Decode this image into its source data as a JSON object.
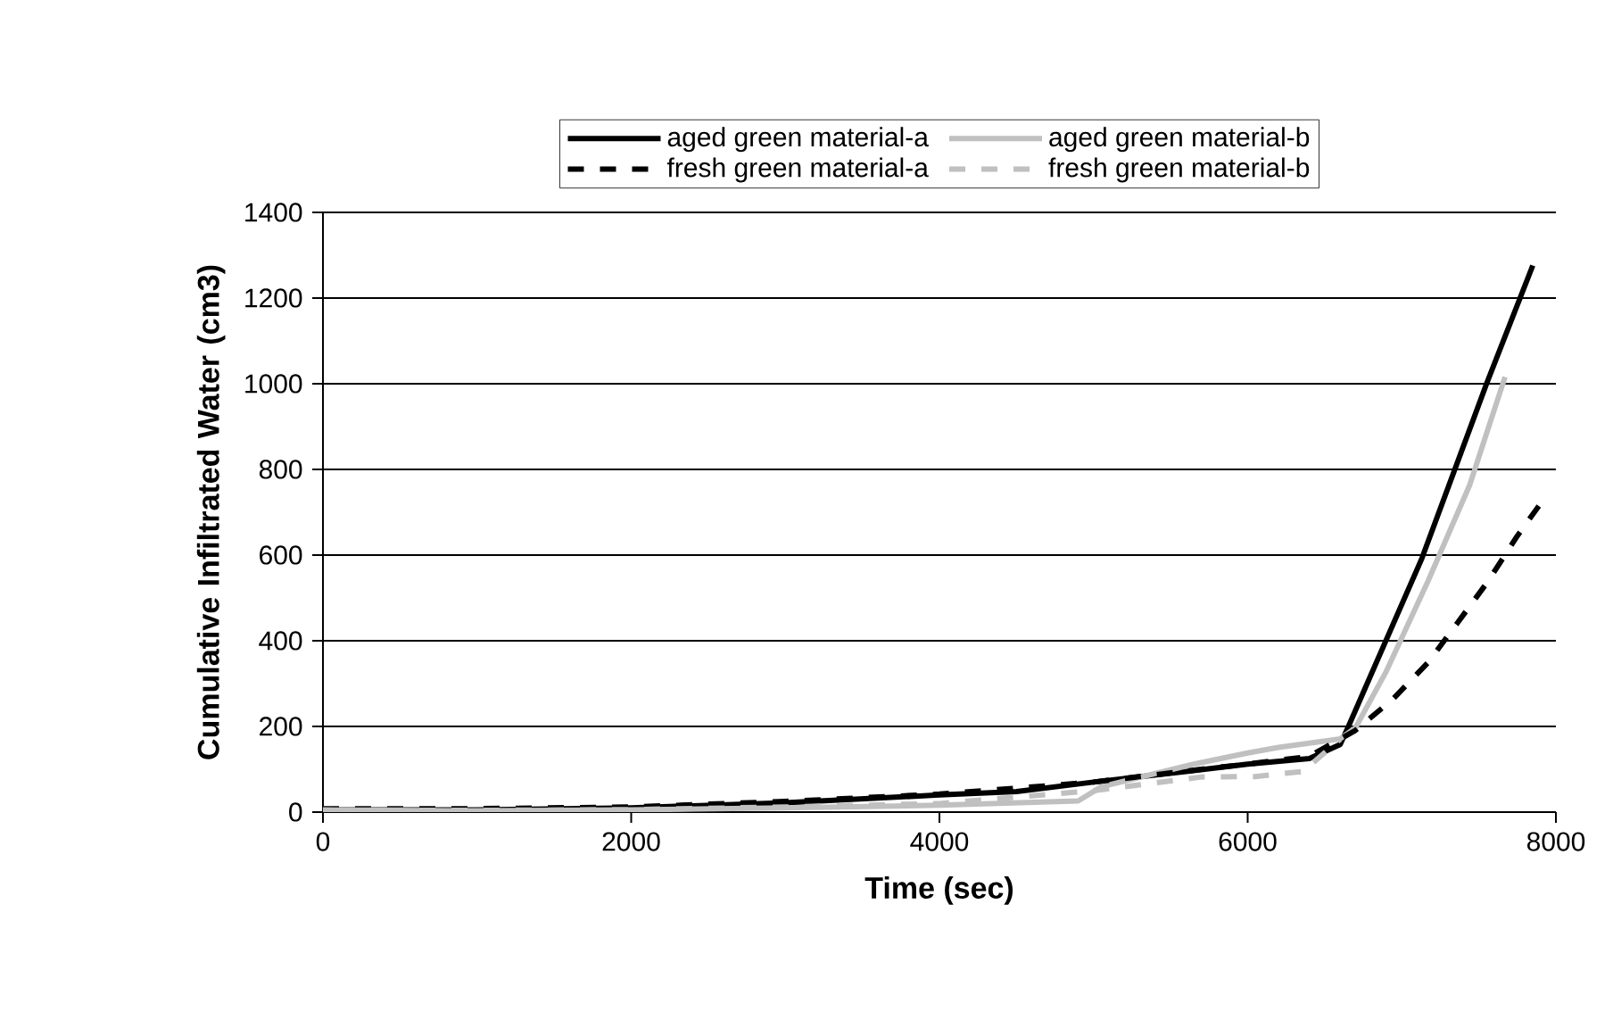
{
  "chart_data": {
    "type": "line",
    "xlabel": "Time (sec)",
    "ylabel": "Cumulative Infiltrated Water (cm3)",
    "xlim": [
      0,
      8000
    ],
    "xticks": [
      0,
      2000,
      4000,
      6000,
      8000
    ],
    "ylim": [
      0,
      1400
    ],
    "yticks": [
      0,
      200,
      400,
      600,
      800,
      1000,
      1200,
      1400
    ],
    "grid": "y",
    "legend": "top",
    "marker": "none",
    "series": [
      {
        "name": "aged green material-a",
        "color": "#000000",
        "line_style": "solid",
        "x": [
          0,
          1000,
          2000,
          3000,
          4000,
          4500,
          5000,
          5600,
          6000,
          6400,
          6600,
          6650,
          7130,
          7550,
          7850
        ],
        "values": [
          5,
          5,
          10,
          22,
          40,
          48,
          70,
          95,
          112,
          125,
          158,
          197,
          592,
          1000,
          1276
        ]
      },
      {
        "name": "aged green material-b",
        "color": "#c0c0c0",
        "line_style": "solid",
        "x": [
          0,
          1000,
          2000,
          3000,
          4000,
          4900,
          5050,
          5650,
          6000,
          6200,
          6600,
          6700,
          6900,
          7170,
          7440,
          7670
        ],
        "values": [
          5,
          3,
          5,
          10,
          16,
          26,
          59,
          112,
          138,
          151,
          171,
          197,
          329,
          539,
          763,
          1016
        ]
      },
      {
        "name": "fresh green material-a",
        "color": "#000000",
        "line_style": "dashed",
        "x": [
          0,
          1000,
          2000,
          3000,
          4000,
          5000,
          5700,
          6000,
          6400,
          6700,
          6940,
          7170,
          7360,
          7560,
          7750,
          7920
        ],
        "values": [
          8,
          8,
          12,
          25,
          42,
          70,
          100,
          112,
          130,
          191,
          263,
          349,
          441,
          539,
          645,
          730
        ]
      },
      {
        "name": "fresh green material-b",
        "color": "#c0c0c0",
        "line_style": "dashed",
        "x": [
          0,
          1000,
          2000,
          3000,
          4000,
          5000,
          5700,
          6050,
          6360,
          6600
        ],
        "values": [
          5,
          4,
          6,
          12,
          20,
          50,
          82,
          83,
          95,
          170
        ]
      }
    ]
  }
}
